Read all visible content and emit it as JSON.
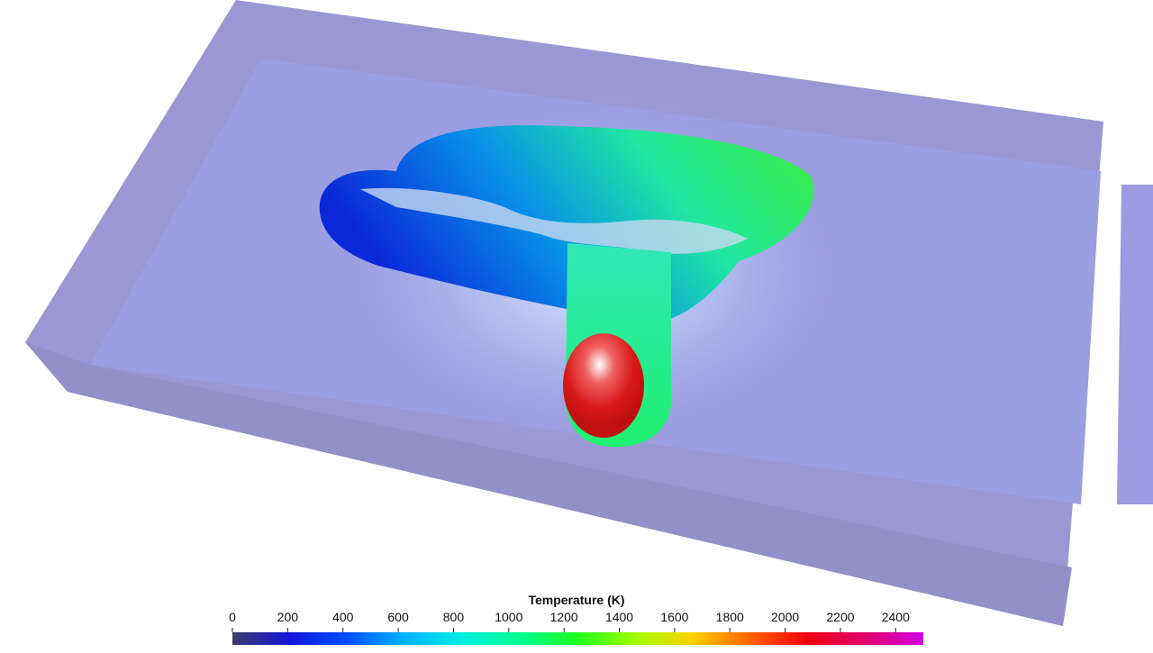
{
  "colorbar": {
    "title": "Temperature (K)",
    "lim": [
      0,
      2500
    ],
    "ticks": [
      0,
      200,
      400,
      600,
      800,
      1000,
      1200,
      1400,
      1600,
      1800,
      2000,
      2200,
      2400
    ],
    "colors": [
      "#3a3d6b",
      "#1414d8",
      "#0050ff",
      "#00b4ff",
      "#00f0e0",
      "#00ff90",
      "#20ff20",
      "#a0ff00",
      "#ffd000",
      "#ff6000",
      "#f00010",
      "#e00070",
      "#d000e0"
    ]
  }
}
